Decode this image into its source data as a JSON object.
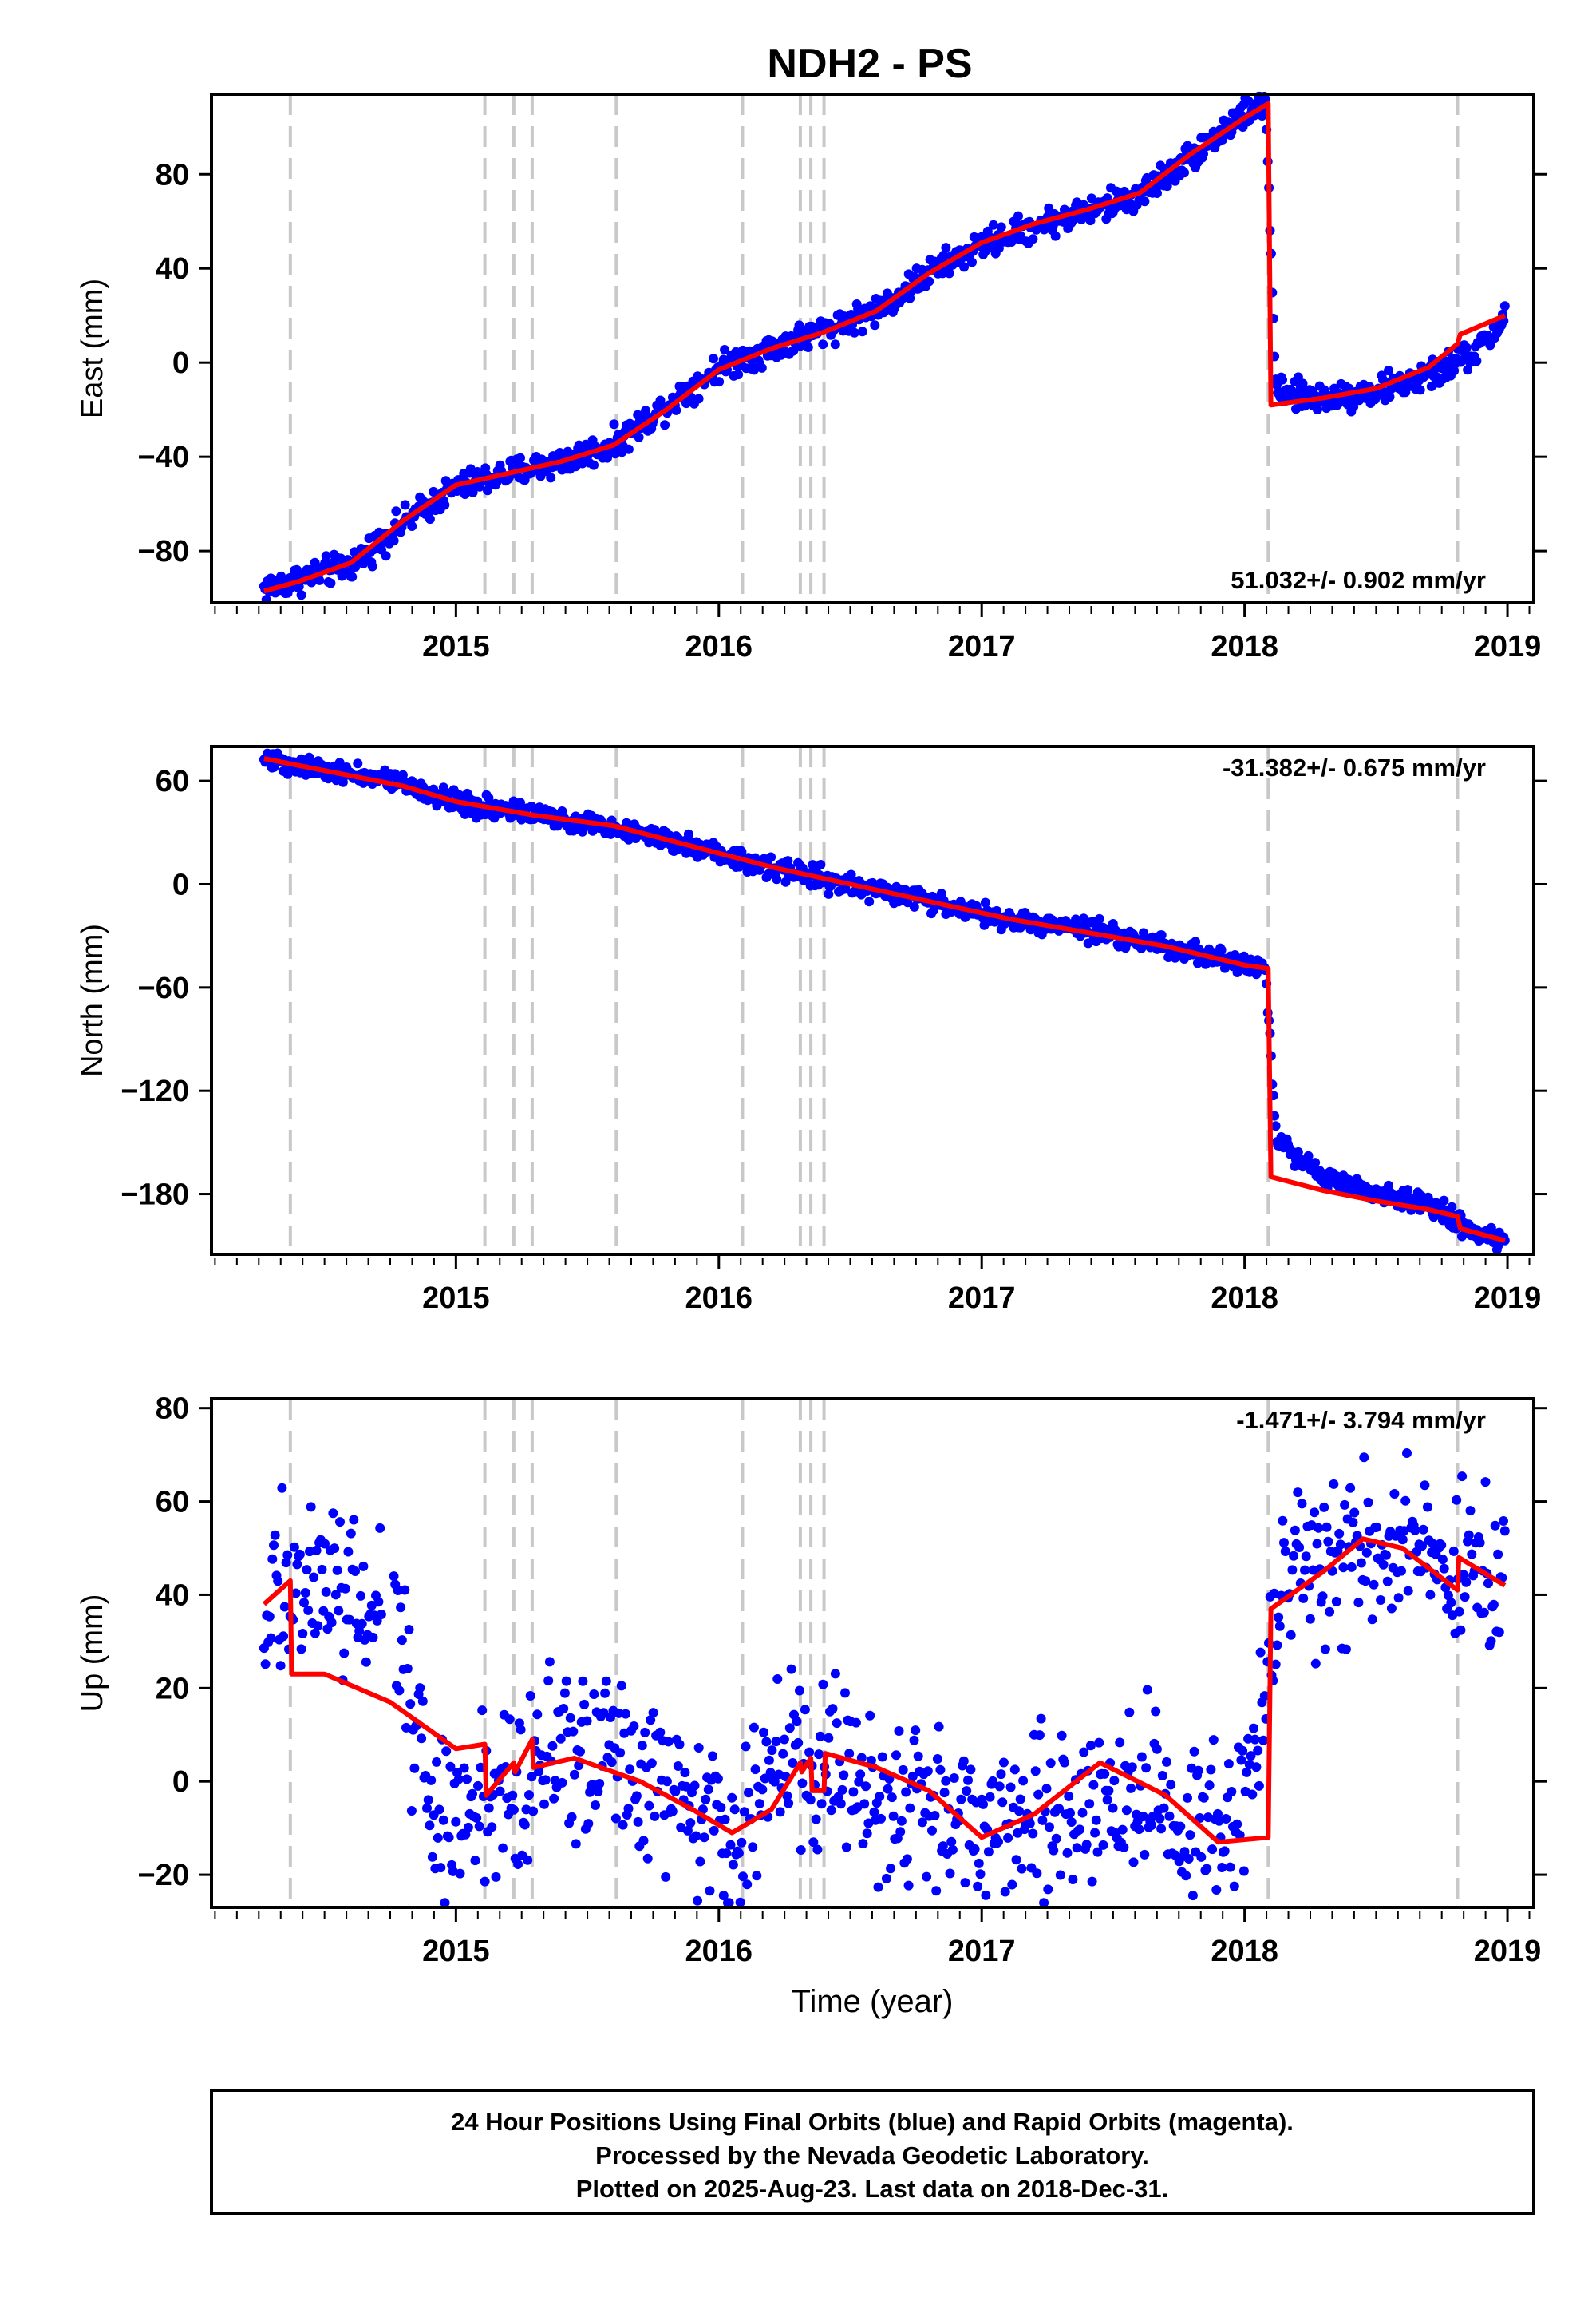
{
  "figure": {
    "title": "NDH2 - PS",
    "xlabel": "Time (year)",
    "footer": [
      "24 Hour Positions Using Final Orbits (blue) and Rapid Orbits (magenta).",
      "Processed by the Nevada Geodetic Laboratory.",
      "Plotted on 2025-Aug-23. Last data on 2018-Dec-31."
    ]
  },
  "chart_data": [
    {
      "type": "scatter",
      "title": "NDH2 - PS",
      "ylabel": "East (mm)",
      "xlim": [
        2014.07,
        2019.1
      ],
      "ylim": [
        -102,
        114
      ],
      "x_ticks": [
        2015,
        2016,
        2017,
        2018,
        2019
      ],
      "y_ticks": [
        -80,
        -40,
        0,
        40,
        80
      ],
      "rate_label": "51.032+/- 0.902 mm/yr",
      "rate_position": "bottom-right",
      "event_lines": [
        2014.37,
        2015.11,
        2015.22,
        2015.29,
        2015.61,
        2016.09,
        2016.31,
        2016.35,
        2016.4,
        2018.09,
        2018.81
      ],
      "series": [
        {
          "name": "Final Orbits",
          "color": "#0000ff",
          "kind": "points",
          "x": [
            2014.27,
            2014.4,
            2014.6,
            2014.8,
            2015.0,
            2015.2,
            2015.4,
            2015.6,
            2015.8,
            2016.0,
            2016.2,
            2016.4,
            2016.6,
            2016.8,
            2017.0,
            2017.2,
            2017.4,
            2017.6,
            2017.8,
            2018.0,
            2018.08,
            2018.12,
            2018.3,
            2018.5,
            2018.7,
            2018.9,
            2018.99
          ],
          "y": [
            -96,
            -92,
            -86,
            -68,
            -53,
            -47,
            -42,
            -35,
            -18,
            -2,
            6,
            14,
            22,
            38,
            50,
            58,
            64,
            71,
            88,
            106,
            110,
            -13,
            -15,
            -12,
            -6,
            6,
            20
          ]
        },
        {
          "name": "Model",
          "color": "#ff0000",
          "kind": "line",
          "x": [
            2014.27,
            2014.4,
            2014.6,
            2014.8,
            2015.0,
            2015.2,
            2015.4,
            2015.6,
            2015.8,
            2016.0,
            2016.2,
            2016.4,
            2016.6,
            2016.8,
            2017.0,
            2017.2,
            2017.4,
            2017.6,
            2017.8,
            2018.0,
            2018.09,
            2018.1,
            2018.3,
            2018.5,
            2018.7,
            2018.81,
            2018.82,
            2018.99
          ],
          "y": [
            -97,
            -93,
            -85,
            -67,
            -52,
            -47,
            -42,
            -35,
            -20,
            -3,
            6,
            13,
            22,
            38,
            51,
            59,
            65,
            72,
            89,
            104,
            110,
            -18,
            -15,
            -11,
            -2,
            8,
            12,
            20
          ]
        }
      ]
    },
    {
      "type": "scatter",
      "ylabel": "North (mm)",
      "xlim": [
        2014.07,
        2019.1
      ],
      "ylim": [
        -215,
        80
      ],
      "x_ticks": [
        2015,
        2016,
        2017,
        2018,
        2019
      ],
      "y_ticks": [
        -180,
        -120,
        -60,
        0,
        60
      ],
      "rate_label": "-31.382+/- 0.675 mm/yr",
      "rate_position": "top-right",
      "event_lines": [
        2014.37,
        2015.11,
        2015.22,
        2015.29,
        2015.61,
        2016.09,
        2016.31,
        2016.35,
        2016.4,
        2018.09,
        2018.81
      ],
      "series": [
        {
          "name": "Final Orbits",
          "color": "#0000ff",
          "kind": "points",
          "x": [
            2014.27,
            2014.5,
            2014.8,
            2015.0,
            2015.3,
            2015.6,
            2015.9,
            2016.2,
            2016.5,
            2016.8,
            2017.1,
            2017.4,
            2017.7,
            2018.0,
            2018.08,
            2018.12,
            2018.3,
            2018.5,
            2018.7,
            2018.9,
            2018.99
          ],
          "y": [
            73,
            67,
            58,
            48,
            40,
            34,
            22,
            10,
            0,
            -10,
            -20,
            -27,
            -36,
            -47,
            -49,
            -148,
            -170,
            -180,
            -186,
            -204,
            -207
          ]
        },
        {
          "name": "Model",
          "color": "#ff0000",
          "kind": "line",
          "x": [
            2014.27,
            2014.5,
            2014.8,
            2015.0,
            2015.3,
            2015.6,
            2015.9,
            2016.2,
            2016.5,
            2016.8,
            2017.1,
            2017.4,
            2017.7,
            2018.0,
            2018.09,
            2018.1,
            2018.3,
            2018.5,
            2018.7,
            2018.81,
            2018.82,
            2018.99
          ],
          "y": [
            73,
            66,
            57,
            48,
            40,
            34,
            22,
            10,
            0,
            -10,
            -20,
            -28,
            -36,
            -47,
            -49,
            -170,
            -178,
            -184,
            -189,
            -193,
            -200,
            -207
          ]
        }
      ]
    },
    {
      "type": "scatter",
      "ylabel": "Up (mm)",
      "xlim": [
        2014.07,
        2019.1
      ],
      "ylim": [
        -27,
        82
      ],
      "x_ticks": [
        2015,
        2016,
        2017,
        2018,
        2019
      ],
      "y_ticks": [
        -20,
        0,
        20,
        40,
        60,
        80
      ],
      "rate_label": "-1.471+/- 3.794 mm/yr",
      "rate_position": "top-right",
      "event_lines": [
        2014.37,
        2015.11,
        2015.22,
        2015.29,
        2015.61,
        2016.09,
        2016.31,
        2016.35,
        2016.4,
        2018.09,
        2018.81
      ],
      "series": [
        {
          "name": "Final Orbits",
          "color": "#0000ff",
          "kind": "points",
          "x": [
            2014.27,
            2014.4,
            2014.5,
            2014.6,
            2014.75,
            2014.9,
            2015.1,
            2015.3,
            2015.5,
            2015.7,
            2015.9,
            2016.05,
            2016.2,
            2016.4,
            2016.6,
            2016.8,
            2017.0,
            2017.2,
            2017.4,
            2017.6,
            2017.8,
            2018.0,
            2018.15,
            2018.3,
            2018.5,
            2018.7,
            2018.85,
            2018.99
          ],
          "y": [
            35,
            45,
            42,
            38,
            40,
            -5,
            -6,
            5,
            8,
            2,
            -4,
            -10,
            0,
            5,
            0,
            -3,
            -10,
            -6,
            -3,
            -4,
            -8,
            -5,
            42,
            48,
            52,
            48,
            44,
            42
          ]
        },
        {
          "name": "Model",
          "color": "#ff0000",
          "kind": "line",
          "x": [
            2014.27,
            2014.37,
            2014.375,
            2014.5,
            2014.75,
            2015.0,
            2015.11,
            2015.115,
            2015.22,
            2015.225,
            2015.29,
            2015.295,
            2015.45,
            2015.7,
            2015.9,
            2016.05,
            2016.2,
            2016.31,
            2016.315,
            2016.35,
            2016.355,
            2016.4,
            2016.405,
            2016.6,
            2016.8,
            2017.0,
            2017.2,
            2017.45,
            2017.7,
            2017.9,
            2018.09,
            2018.1,
            2018.3,
            2018.45,
            2018.6,
            2018.81,
            2018.815,
            2018.99
          ],
          "y": [
            38,
            43,
            23,
            23,
            17,
            7,
            8,
            -3,
            4,
            2,
            9,
            3,
            5,
            0,
            -6,
            -11,
            -6,
            4,
            2,
            5,
            -2,
            -2,
            6,
            3,
            -2,
            -12,
            -7,
            4,
            -3,
            -13,
            -12,
            37,
            45,
            52,
            50,
            41,
            48,
            42
          ]
        }
      ]
    }
  ]
}
